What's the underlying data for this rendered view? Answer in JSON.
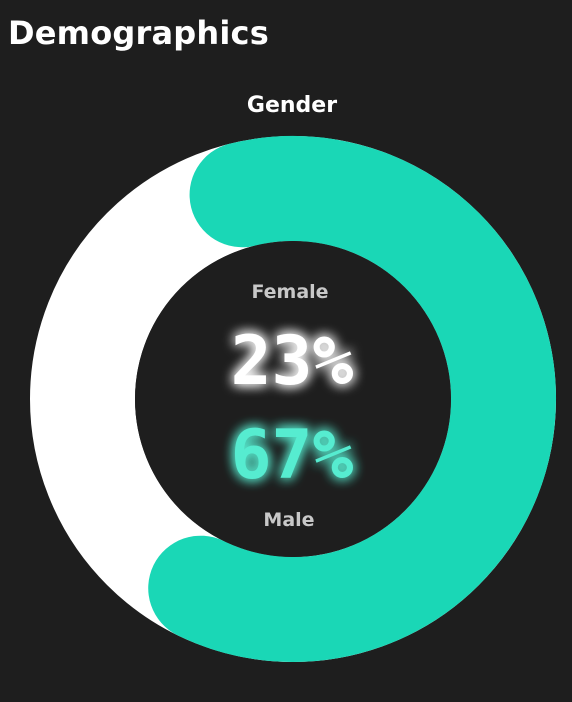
{
  "page": {
    "title": "Demographics"
  },
  "colors": {
    "background": "#1e1e1e",
    "female": "#ffffff",
    "male": "#1ad7b6",
    "label": "#c8c8c8"
  },
  "chart_data": {
    "type": "pie",
    "title": "Gender",
    "series": [
      {
        "name": "Female",
        "value": 23,
        "display": "23%"
      },
      {
        "name": "Male",
        "value": 67,
        "display": "67%"
      }
    ]
  }
}
